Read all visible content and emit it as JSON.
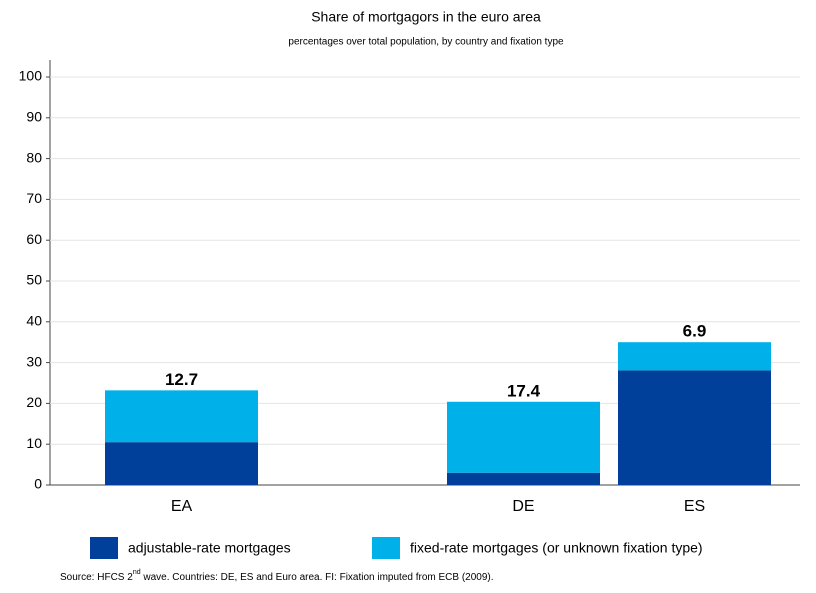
{
  "chart_data": {
    "type": "stacked_bar",
    "title": "Share of mortgagors in the euro area",
    "subtitle": "percentages over total population, by country and fixation type",
    "categories": [
      "EA",
      null,
      "DE",
      "ES"
    ],
    "series": [
      {
        "name": "adjustable-rate mortgages",
        "color": "#003f9a",
        "values": [
          10.5,
          null,
          3.0,
          28.1
        ],
        "value_labels": [
          "10.5",
          null,
          "3.0",
          "28.1"
        ]
      },
      {
        "name": "fixed-rate mortgages (or unknown fixation type)",
        "color": "#00b0e8",
        "values": [
          12.7,
          null,
          17.4,
          6.9
        ],
        "value_labels": [
          "12.7",
          null,
          "17.4",
          "6.9"
        ]
      }
    ],
    "ylim": [
      0,
      100
    ],
    "yticks": [
      0,
      10,
      20,
      30,
      40,
      50,
      60,
      70,
      80,
      90,
      100
    ],
    "grid": true,
    "source": [
      "Source: HFCS 2",
      "nd",
      " wave. Countries: DE, ES and Euro area. FI: Fixation imputed from ECB (2009)."
    ]
  }
}
